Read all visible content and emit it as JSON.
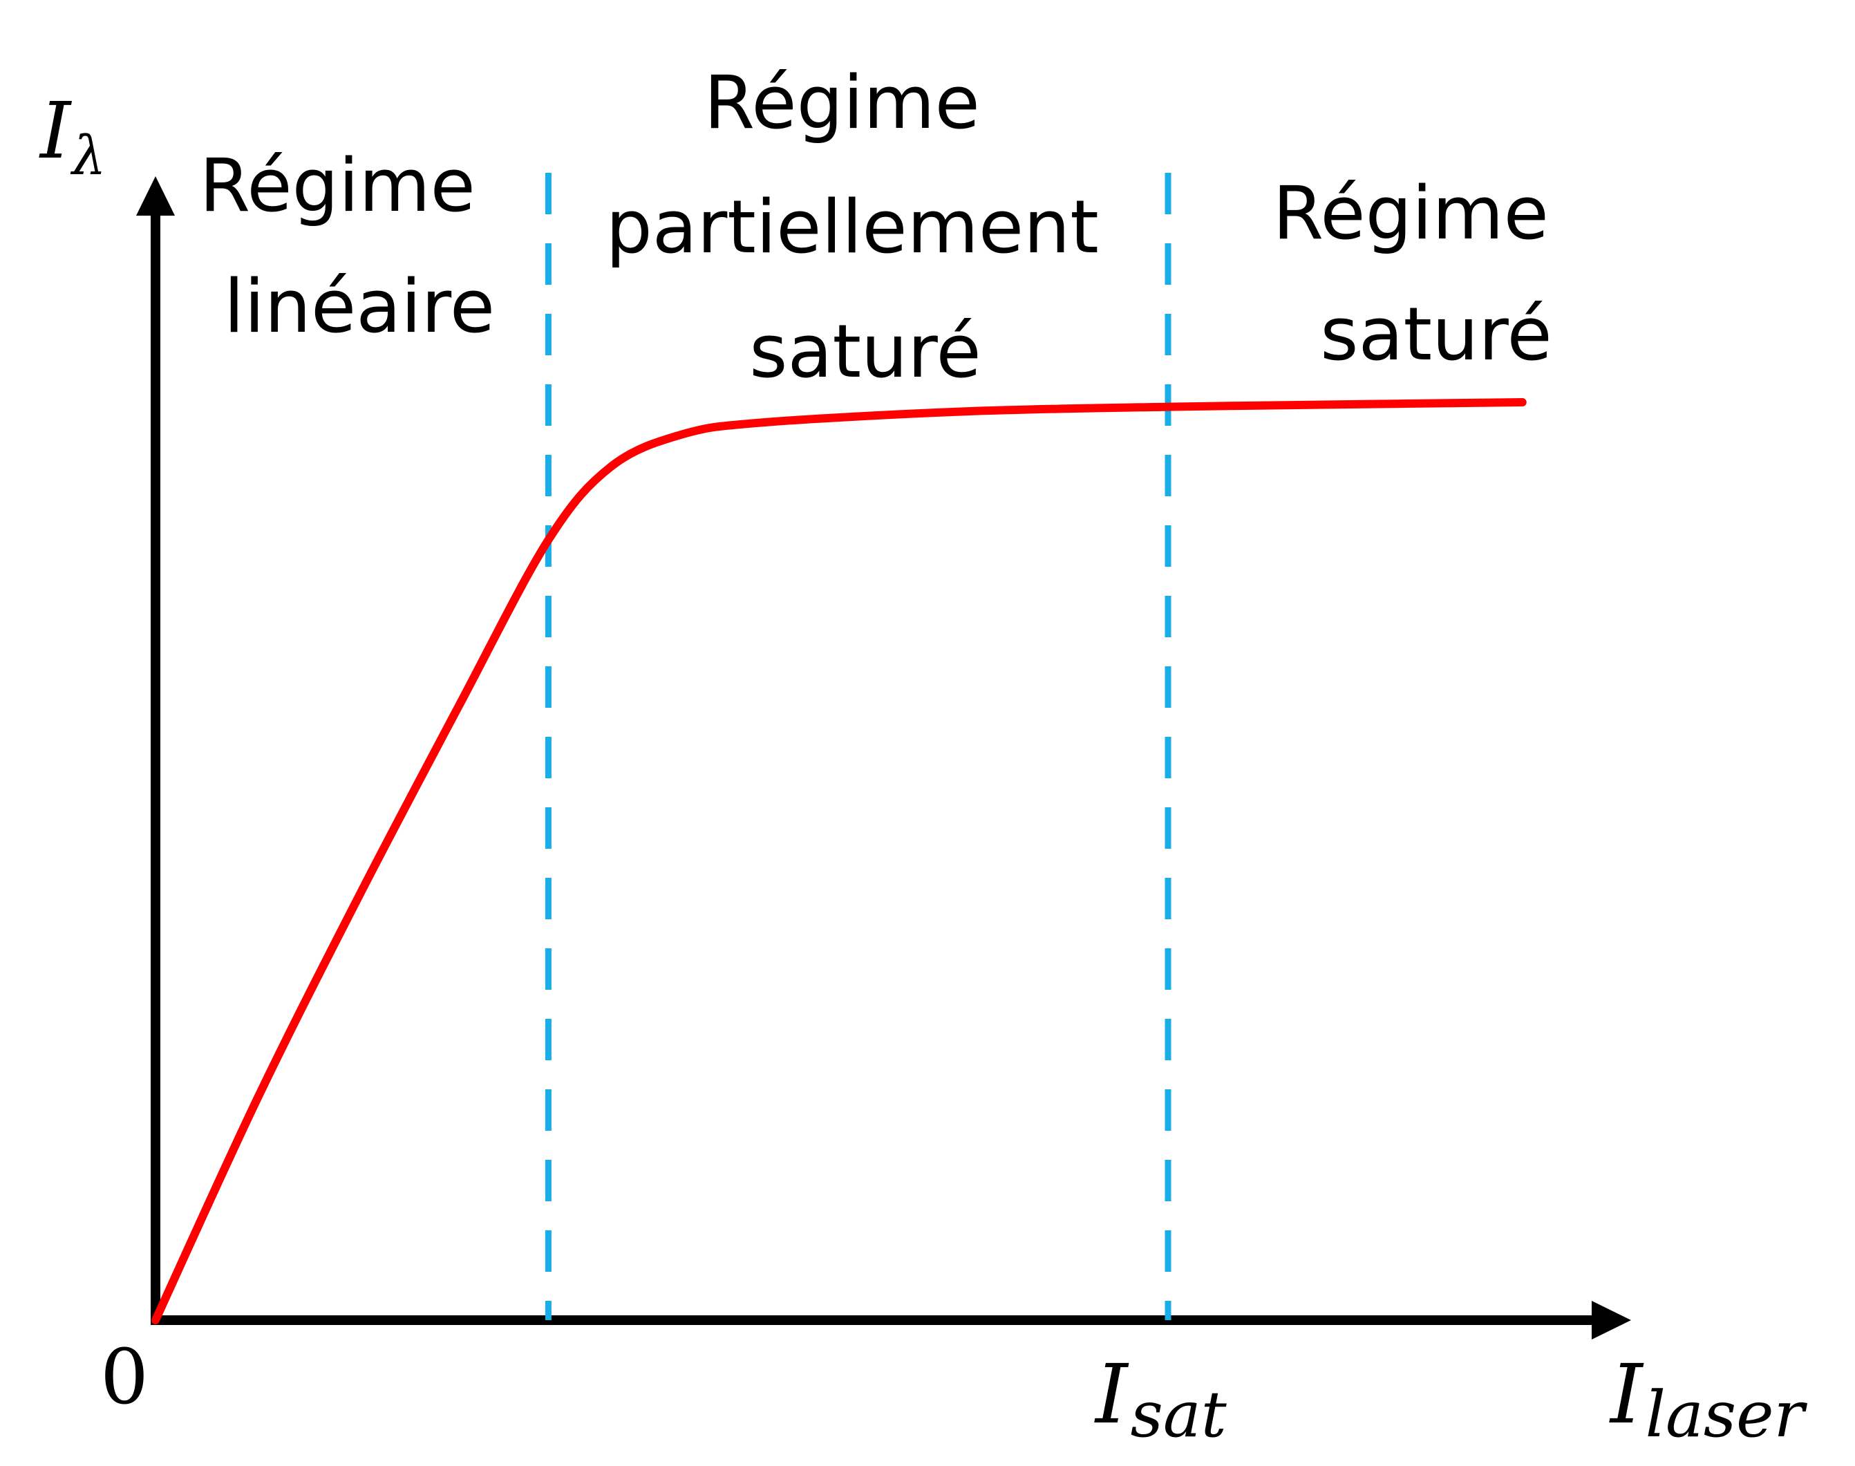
{
  "colors": {
    "axis": "#000000",
    "curve": "#ff0000",
    "boundary": "#1aaee8",
    "background": "#ffffff"
  },
  "axes": {
    "y_label_main": "I",
    "y_label_sub": "λ",
    "x_label_main": "I",
    "x_label_sub": "laser",
    "origin_label": "0",
    "x_tick_main": "I",
    "x_tick_sub": "sat"
  },
  "regions": [
    {
      "lines": [
        "Régime",
        "linéaire"
      ]
    },
    {
      "lines": [
        "Régime",
        "partiellement",
        "saturé"
      ]
    },
    {
      "lines": [
        "Régime",
        "saturé"
      ]
    }
  ],
  "chart_data": {
    "type": "line",
    "x_unit": "relative to I_sat",
    "y_unit": "relative to plateau",
    "boundaries": [
      0.388,
      1.0
    ],
    "series": [
      {
        "x": [
          0.0,
          0.1,
          0.2,
          0.3,
          0.388,
          0.45,
          0.52,
          0.6,
          0.8,
          1.0,
          1.2,
          1.35
        ],
        "y": [
          0.0,
          0.24,
          0.46,
          0.67,
          0.85,
          0.93,
          0.965,
          0.978,
          0.99,
          0.995,
          0.998,
          1.0
        ]
      }
    ]
  }
}
